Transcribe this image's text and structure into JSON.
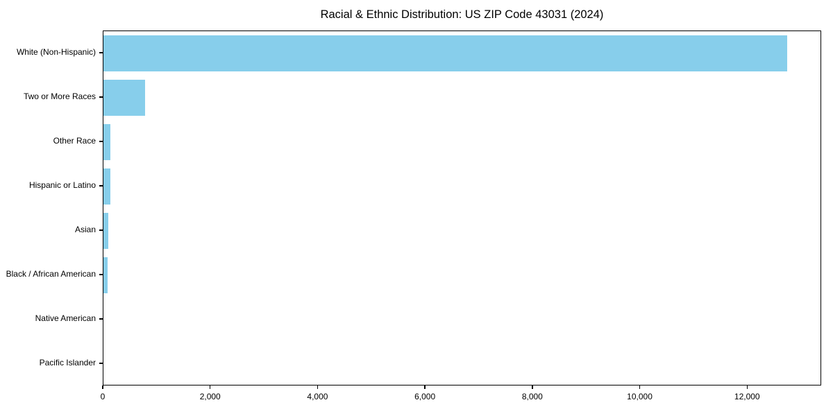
{
  "chart_data": {
    "type": "bar",
    "orientation": "horizontal",
    "title": "Racial & Ethnic Distribution: US ZIP Code 43031 (2024)",
    "xlabel": "",
    "ylabel": "",
    "categories": [
      "White (Non-Hispanic)",
      "Two or More Races",
      "Other Race",
      "Hispanic or Latino",
      "Asian",
      "Black / African American",
      "Native American",
      "Pacific Islander"
    ],
    "values": [
      12740,
      775,
      130,
      135,
      90,
      75,
      0,
      0
    ],
    "xlim": [
      0,
      13380
    ],
    "x_ticks": [
      0,
      2000,
      4000,
      6000,
      8000,
      10000,
      12000
    ],
    "x_tick_labels": [
      "0",
      "2,000",
      "4,000",
      "6,000",
      "8,000",
      "10,000",
      "12,000"
    ],
    "bar_color": "#87CEEB",
    "grid": false,
    "legend": null,
    "background_color": "#ffffff",
    "axis_color": "#000000",
    "text_color": "#000000"
  }
}
